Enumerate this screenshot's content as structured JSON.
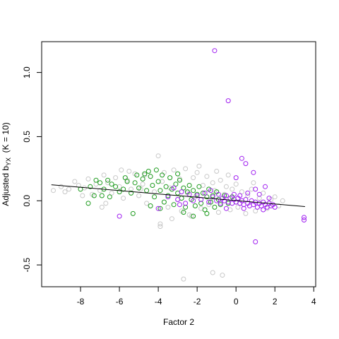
{
  "chart_data": {
    "type": "scatter",
    "xlabel": "Factor 2",
    "ylabel": "Adjusted b_YX  (K = 10)",
    "ylabel_parts": {
      "pre": "Adjusted b",
      "sub": "YX",
      "post": "  (K = 10)"
    },
    "xlim": [
      -10.0,
      4.1
    ],
    "ylim": [
      -0.67,
      1.24
    ],
    "xticks": [
      -8,
      -6,
      -4,
      -2,
      0,
      2,
      4
    ],
    "yticks": [
      -0.5,
      0.0,
      0.5,
      1.0
    ],
    "ytick_labels": [
      "-0.5",
      "0.0",
      "0.5",
      "1.0"
    ],
    "grid": false,
    "legend": "none",
    "colors": {
      "gray": "#c8c8c8",
      "green": "#1e9b1e",
      "purple": "#a020f0",
      "line": "#000000"
    },
    "trend_line": {
      "x": [
        -9.5,
        3.55
      ],
      "y": [
        0.125,
        -0.045
      ]
    },
    "series": [
      {
        "color": "gray",
        "points": [
          [
            -9.4,
            0.08
          ],
          [
            -9.0,
            0.11
          ],
          [
            -8.6,
            0.09
          ],
          [
            -8.3,
            0.15
          ],
          [
            -8.1,
            0.12
          ],
          [
            -7.8,
            0.1
          ],
          [
            -7.6,
            0.17
          ],
          [
            -7.4,
            0.05
          ],
          [
            -7.2,
            0.13
          ],
          [
            -7.0,
            0.08
          ],
          [
            -6.8,
            0.2
          ],
          [
            -6.6,
            0.14
          ],
          [
            -6.4,
            0.06
          ],
          [
            -6.2,
            0.18
          ],
          [
            -6.0,
            0.11
          ],
          [
            -5.8,
            0.02
          ],
          [
            -5.6,
            0.16
          ],
          [
            -5.4,
            0.09
          ],
          [
            -5.2,
            0.21
          ],
          [
            -5.0,
            0.04
          ],
          [
            -4.8,
            0.13
          ],
          [
            -4.6,
            -0.02
          ],
          [
            -4.4,
            0.19
          ],
          [
            -4.2,
            0.07
          ],
          [
            -4.0,
            0.35
          ],
          [
            -3.9,
            -0.18
          ],
          [
            -3.8,
            0.15
          ],
          [
            -3.7,
            0.22
          ],
          [
            -3.5,
            -0.05
          ],
          [
            -3.4,
            0.1
          ],
          [
            -3.2,
            0.24
          ],
          [
            -3.0,
            0.01
          ],
          [
            -2.9,
            0.17
          ],
          [
            -2.8,
            -0.08
          ],
          [
            -2.6,
            0.25
          ],
          [
            -2.5,
            0.06
          ],
          [
            -2.4,
            -0.11
          ],
          [
            -2.2,
            0.18
          ],
          [
            -2.1,
            0.03
          ],
          [
            -2.0,
            0.22
          ],
          [
            -1.8,
            -0.06
          ],
          [
            -1.7,
            0.12
          ],
          [
            -1.5,
            0.19
          ],
          [
            -1.4,
            -0.03
          ],
          [
            -1.2,
            0.14
          ],
          [
            -1.1,
            0.08
          ],
          [
            -0.9,
            -0.09
          ],
          [
            -0.8,
            0.16
          ],
          [
            -0.6,
            0.05
          ],
          [
            -0.5,
            0.11
          ],
          [
            -0.3,
            -0.07
          ],
          [
            -0.2,
            0.09
          ],
          [
            0.0,
            0.13
          ],
          [
            0.1,
            -0.05
          ],
          [
            0.3,
            0.07
          ],
          [
            0.5,
            -0.1
          ],
          [
            0.6,
            0.04
          ],
          [
            0.8,
            0.09
          ],
          [
            1.0,
            -0.08
          ],
          [
            1.2,
            0.02
          ],
          [
            1.4,
            0.06
          ],
          [
            1.6,
            -0.06
          ],
          [
            1.8,
            0.01
          ],
          [
            2.0,
            0.03
          ],
          [
            2.2,
            -0.04
          ],
          [
            2.4,
            0.0
          ],
          [
            -3.9,
            -0.2
          ],
          [
            -2.7,
            -0.61
          ],
          [
            -1.2,
            -0.56
          ],
          [
            -0.7,
            -0.58
          ],
          [
            -6.9,
            -0.05
          ],
          [
            -5.5,
            0.23
          ],
          [
            -4.7,
            0.2
          ],
          [
            -3.3,
            -0.14
          ],
          [
            -1.9,
            0.27
          ],
          [
            -0.4,
            0.2
          ],
          [
            0.9,
            0.14
          ],
          [
            -8.8,
            0.07
          ],
          [
            -7.9,
            0.04
          ],
          [
            -6.7,
            -0.02
          ],
          [
            -5.9,
            0.24
          ],
          [
            -4.9,
            0.09
          ],
          [
            -2.3,
            -0.12
          ],
          [
            -1.0,
            0.23
          ]
        ]
      },
      {
        "color": "green",
        "points": [
          [
            -8.0,
            0.09
          ],
          [
            -7.5,
            0.11
          ],
          [
            -7.2,
            0.16
          ],
          [
            -7.0,
            0.14
          ],
          [
            -6.8,
            0.09
          ],
          [
            -6.6,
            0.16
          ],
          [
            -6.4,
            0.13
          ],
          [
            -6.2,
            0.11
          ],
          [
            -6.0,
            0.07
          ],
          [
            -5.8,
            0.09
          ],
          [
            -5.6,
            0.15
          ],
          [
            -5.4,
            0.06
          ],
          [
            -5.2,
            0.14
          ],
          [
            -5.1,
            0.2
          ],
          [
            -5.0,
            0.1
          ],
          [
            -4.8,
            0.17
          ],
          [
            -4.6,
            0.08
          ],
          [
            -4.5,
            0.23
          ],
          [
            -4.4,
            0.19
          ],
          [
            -4.3,
            0.12
          ],
          [
            -4.2,
            0.03
          ],
          [
            -4.0,
            0.15
          ],
          [
            -3.9,
            0.08
          ],
          [
            -3.8,
            0.2
          ],
          [
            -3.7,
            -0.01
          ],
          [
            -3.6,
            0.11
          ],
          [
            -3.5,
            0.04
          ],
          [
            -3.4,
            0.18
          ],
          [
            -3.3,
            0.09
          ],
          [
            -3.2,
            -0.03
          ],
          [
            -3.1,
            0.13
          ],
          [
            -3.0,
            0.06
          ],
          [
            -2.9,
            0.16
          ],
          [
            -2.8,
            0.02
          ],
          [
            -2.7,
            0.1
          ],
          [
            -2.6,
            -0.05
          ],
          [
            -2.5,
            0.07
          ],
          [
            -2.4,
            0.12
          ],
          [
            -2.3,
            0.01
          ],
          [
            -2.2,
            0.08
          ],
          [
            -2.1,
            -0.04
          ],
          [
            -2.0,
            0.05
          ],
          [
            -1.9,
            0.11
          ],
          [
            -1.8,
            -0.02
          ],
          [
            -1.7,
            0.06
          ],
          [
            -1.6,
            -0.07
          ],
          [
            -1.5,
            0.03
          ],
          [
            -1.4,
            0.09
          ],
          [
            -1.3,
            -0.01
          ],
          [
            -1.2,
            0.04
          ],
          [
            -1.1,
            -0.05
          ],
          [
            -1.0,
            0.07
          ],
          [
            -0.9,
            0.01
          ],
          [
            -0.8,
            -0.03
          ],
          [
            -0.6,
            0.04
          ],
          [
            -0.4,
            -0.02
          ],
          [
            -0.2,
            0.03
          ],
          [
            0.0,
            -0.01
          ],
          [
            -7.6,
            -0.02
          ],
          [
            -7.3,
            0.04
          ],
          [
            -6.5,
            0.03
          ],
          [
            -5.3,
            -0.1
          ],
          [
            -4.1,
            0.24
          ],
          [
            -3.9,
            -0.06
          ],
          [
            -2.7,
            -0.09
          ],
          [
            -1.5,
            -0.1
          ],
          [
            -4.7,
            0.21
          ],
          [
            -5.7,
            0.18
          ],
          [
            -3.0,
            0.21
          ],
          [
            -2.2,
            -0.12
          ],
          [
            -6.9,
            0.04
          ],
          [
            -4.4,
            -0.04
          ]
        ]
      },
      {
        "color": "purple",
        "points": [
          [
            -1.1,
            1.17
          ],
          [
            -0.4,
            0.78
          ],
          [
            0.3,
            0.33
          ],
          [
            0.5,
            0.29
          ],
          [
            0.0,
            0.18
          ],
          [
            0.9,
            0.22
          ],
          [
            3.5,
            -0.13
          ],
          [
            3.5,
            -0.15
          ],
          [
            1.0,
            -0.32
          ],
          [
            -6.0,
            -0.12
          ],
          [
            -4.0,
            -0.06
          ],
          [
            -3.5,
            0.03
          ],
          [
            -3.0,
            0.01
          ],
          [
            -2.8,
            0.07
          ],
          [
            -2.6,
            -0.02
          ],
          [
            -2.4,
            0.05
          ],
          [
            -2.2,
            0.0
          ],
          [
            -2.0,
            0.04
          ],
          [
            -1.8,
            0.01
          ],
          [
            -1.6,
            0.06
          ],
          [
            -1.4,
            -0.01
          ],
          [
            -1.2,
            0.03
          ],
          [
            -1.0,
            0.0
          ],
          [
            -0.9,
            0.05
          ],
          [
            -0.8,
            -0.02
          ],
          [
            -0.7,
            0.02
          ],
          [
            -0.6,
            0.0
          ],
          [
            -0.5,
            0.04
          ],
          [
            -0.4,
            -0.01
          ],
          [
            -0.3,
            0.02
          ],
          [
            -0.2,
            -0.02
          ],
          [
            -0.1,
            0.01
          ],
          [
            0.0,
            -0.01
          ],
          [
            0.1,
            0.02
          ],
          [
            0.2,
            -0.02
          ],
          [
            0.3,
            0.0
          ],
          [
            0.4,
            -0.03
          ],
          [
            0.5,
            0.01
          ],
          [
            0.6,
            -0.02
          ],
          [
            0.7,
            -0.04
          ],
          [
            0.8,
            0.0
          ],
          [
            0.9,
            -0.03
          ],
          [
            1.0,
            -0.01
          ],
          [
            1.1,
            -0.05
          ],
          [
            1.2,
            -0.02
          ],
          [
            1.3,
            -0.04
          ],
          [
            1.4,
            -0.01
          ],
          [
            1.5,
            -0.03
          ],
          [
            1.6,
            -0.05
          ],
          [
            1.7,
            -0.02
          ],
          [
            1.8,
            -0.04
          ],
          [
            1.9,
            -0.03
          ],
          [
            2.0,
            -0.05
          ],
          [
            1.0,
            0.09
          ],
          [
            1.5,
            0.11
          ],
          [
            0.6,
            0.06
          ],
          [
            -0.5,
            -0.06
          ],
          [
            -1.3,
            0.08
          ],
          [
            -2.9,
            -0.03
          ],
          [
            -3.2,
            0.1
          ],
          [
            1.2,
            0.05
          ],
          [
            0.4,
            -0.06
          ],
          [
            -0.1,
            0.05
          ],
          [
            1.7,
            0.02
          ],
          [
            1.4,
            -0.07
          ],
          [
            0.2,
            0.04
          ]
        ]
      }
    ]
  }
}
